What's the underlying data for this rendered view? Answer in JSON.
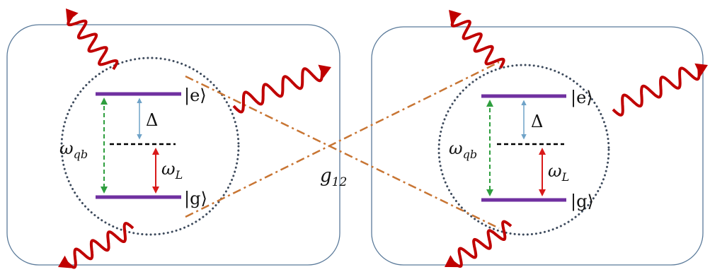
{
  "qubits": [
    {
      "excited_state_label": "|e⟩",
      "ground_state_label": "|g⟩",
      "detuning_symbol": "Δ",
      "qubit_frequency": {
        "symbol": "ω",
        "subscript": "qb"
      },
      "laser_frequency": {
        "symbol": "ω",
        "subscript": "L"
      }
    },
    {
      "excited_state_label": "|e⟩",
      "ground_state_label": "|g⟩",
      "detuning_symbol": "Δ",
      "qubit_frequency": {
        "symbol": "ω",
        "subscript": "qb"
      },
      "laser_frequency": {
        "symbol": "ω",
        "subscript": "L"
      }
    }
  ],
  "coupling": {
    "symbol": "g",
    "subscript": "12"
  },
  "colors": {
    "box_border": "#5a7a9a",
    "dotted_circle": "#3d4a5c",
    "energy_level": "#7030a0",
    "virtual_level": "#000000",
    "detuning_arrow": "#6fa3c8",
    "qubit_arrow": "#2e9e3e",
    "laser_arrow": "#d91a1a",
    "wavy_photon": "#c00000",
    "coupling_line": "#c87533"
  }
}
